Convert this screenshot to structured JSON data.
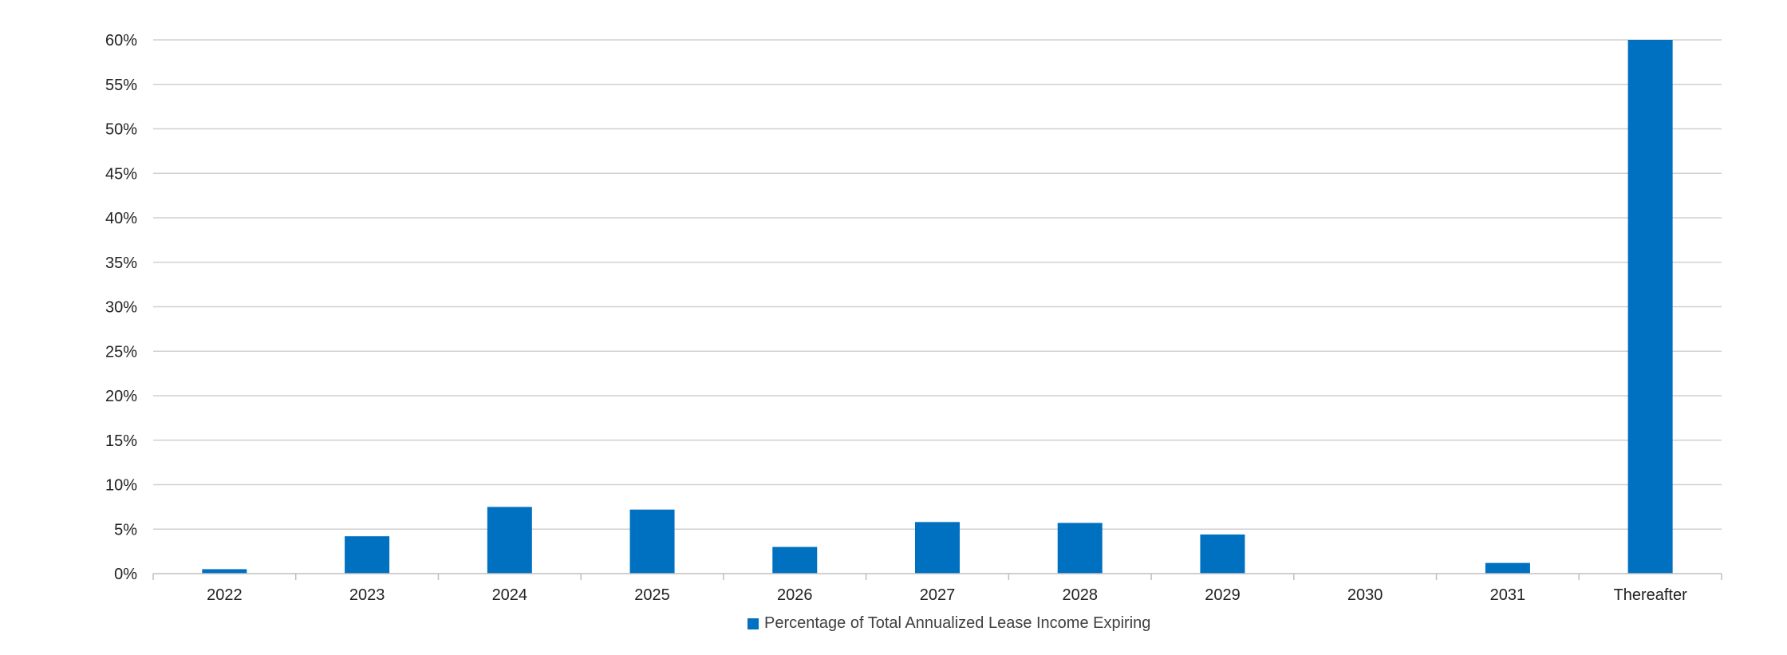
{
  "chart_data": {
    "type": "bar",
    "categories": [
      "2022",
      "2023",
      "2024",
      "2025",
      "2026",
      "2027",
      "2028",
      "2029",
      "2030",
      "2031",
      "Thereafter"
    ],
    "series": [
      {
        "name": "Percentage of Total Annualized Lease Income Expiring",
        "values": [
          0.5,
          4.2,
          7.5,
          7.2,
          3.0,
          5.8,
          5.7,
          4.4,
          0,
          1.2,
          60
        ],
        "color": "#0070c0"
      }
    ],
    "yticks": [
      "0%",
      "5%",
      "10%",
      "15%",
      "20%",
      "25%",
      "30%",
      "35%",
      "40%",
      "45%",
      "50%",
      "55%",
      "60%"
    ],
    "ylim": [
      0,
      60
    ],
    "y_tick_step": 5,
    "grid": true,
    "legend": "bottom-center"
  }
}
